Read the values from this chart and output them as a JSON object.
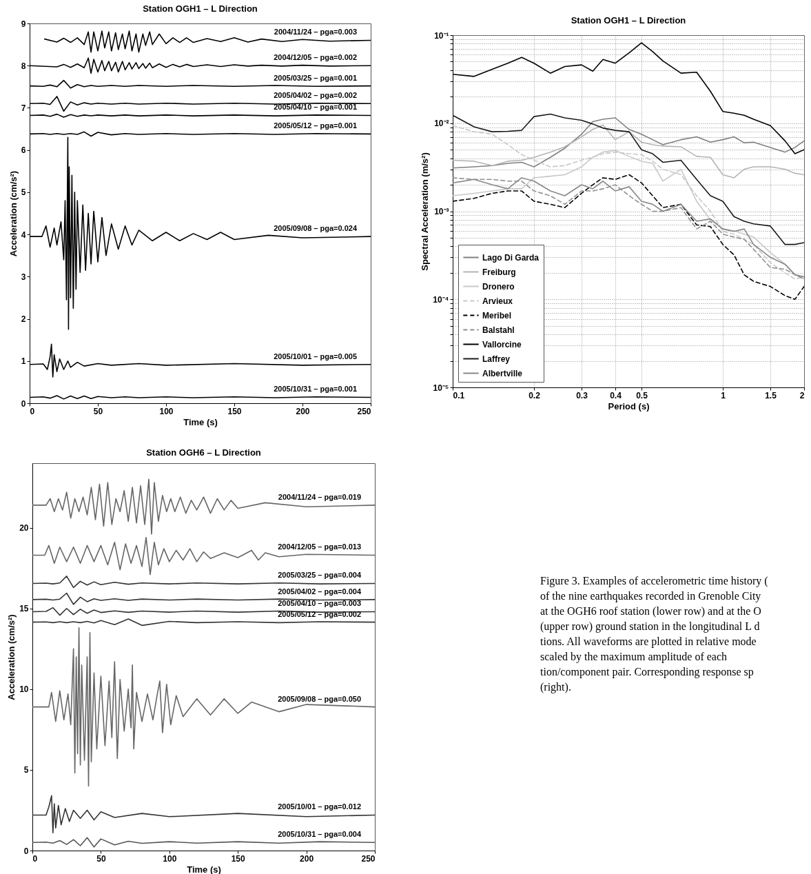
{
  "chart_data": [
    {
      "type": "line",
      "title": "Station OGH1 – L Direction",
      "xlabel": "Time (s)",
      "ylabel": "Acceleration (cm/s²)",
      "xlim": [
        0,
        250
      ],
      "ylim": [
        0,
        9
      ],
      "xticks": [
        0,
        50,
        100,
        150,
        200,
        250
      ],
      "yticks": [
        0,
        1,
        2,
        3,
        4,
        5,
        6,
        7,
        8,
        9
      ],
      "x": [
        0,
        10,
        15,
        20,
        25,
        30,
        35,
        40,
        45,
        50,
        60,
        70,
        80,
        100,
        120,
        150,
        180,
        210,
        250
      ],
      "series": [
        {
          "color": "#000000",
          "x": [
            11,
            20,
            25,
            30,
            35,
            40,
            43,
            45,
            47,
            50,
            53,
            55,
            58,
            60,
            63,
            65,
            68,
            70,
            73,
            75,
            78,
            80,
            83,
            85,
            88,
            90,
            95,
            100,
            105,
            110,
            115,
            120,
            130,
            140,
            150,
            160,
            170,
            185,
            200,
            220,
            250
          ],
          "values": [
            8.63,
            8.56,
            8.65,
            8.55,
            8.66,
            8.5,
            8.8,
            8.32,
            8.8,
            8.35,
            8.82,
            8.42,
            8.8,
            8.35,
            8.78,
            8.38,
            8.75,
            8.4,
            8.82,
            8.35,
            8.75,
            8.32,
            8.75,
            8.48,
            8.8,
            8.5,
            8.75,
            8.52,
            8.66,
            8.55,
            8.66,
            8.55,
            8.64,
            8.57,
            8.66,
            8.56,
            8.63,
            8.57,
            8.62,
            8.58,
            8.6
          ]
        },
        {
          "color": "#000000",
          "x": [
            0,
            20,
            25,
            30,
            35,
            40,
            43,
            45,
            47,
            50,
            53,
            55,
            58,
            60,
            63,
            65,
            68,
            70,
            73,
            75,
            78,
            80,
            83,
            85,
            88,
            90,
            95,
            100,
            105,
            110,
            115,
            120,
            130,
            140,
            150,
            160,
            170,
            185,
            200,
            220,
            250
          ],
          "values": [
            8.0,
            7.97,
            8.03,
            7.96,
            8.04,
            7.95,
            8.18,
            7.82,
            8.15,
            7.85,
            8.12,
            7.88,
            8.1,
            7.88,
            8.08,
            7.85,
            8.1,
            7.9,
            8.07,
            7.92,
            8.07,
            7.93,
            8.05,
            7.94,
            8.06,
            7.95,
            8.04,
            7.96,
            8.03,
            7.97,
            8.03,
            7.98,
            8.02,
            7.98,
            8.02,
            7.99,
            8.01,
            7.99,
            8.01,
            7.99,
            8.0
          ]
        },
        {
          "color": "#000000",
          "values": [
            7.52,
            7.51,
            7.54,
            7.5,
            7.65,
            7.47,
            7.55,
            7.5,
            7.53,
            7.51,
            7.53,
            7.51,
            7.53,
            7.51,
            7.53,
            7.51,
            7.53,
            7.51,
            7.52
          ]
        },
        {
          "color": "#000000",
          "values": [
            7.1,
            7.11,
            7.08,
            7.27,
            6.92,
            7.14,
            7.07,
            7.12,
            7.09,
            7.11,
            7.09,
            7.11,
            7.09,
            7.11,
            7.09,
            7.11,
            7.09,
            7.11,
            7.1
          ]
        },
        {
          "color": "#000000",
          "values": [
            6.82,
            6.83,
            6.8,
            6.85,
            6.78,
            6.84,
            6.8,
            6.83,
            6.81,
            6.83,
            6.81,
            6.83,
            6.81,
            6.83,
            6.81,
            6.83,
            6.81,
            6.83,
            6.82
          ]
        },
        {
          "color": "#000000",
          "values": [
            6.38,
            6.39,
            6.37,
            6.39,
            6.37,
            6.39,
            6.37,
            6.43,
            6.33,
            6.42,
            6.36,
            6.39,
            6.37,
            6.39,
            6.37,
            6.39,
            6.37,
            6.39,
            6.38
          ]
        },
        {
          "color": "#000000",
          "x": [
            0,
            9,
            12,
            15,
            18,
            20,
            23,
            25,
            26,
            27,
            28,
            28.5,
            29,
            30,
            31,
            32,
            33,
            34,
            35,
            37,
            39,
            41,
            43,
            45,
            47,
            50,
            53,
            56,
            60,
            65,
            70,
            75,
            80,
            90,
            100,
            110,
            120,
            130,
            140,
            150,
            175,
            200,
            250
          ],
          "values": [
            3.95,
            3.95,
            4.2,
            3.7,
            4.15,
            3.75,
            4.3,
            3.4,
            4.8,
            2.45,
            6.3,
            1.75,
            5.6,
            2.5,
            5.4,
            2.25,
            5.0,
            2.7,
            4.8,
            3.1,
            4.7,
            3.15,
            4.5,
            3.3,
            4.55,
            3.35,
            4.4,
            3.5,
            4.25,
            3.65,
            4.2,
            3.75,
            4.1,
            3.85,
            4.05,
            3.85,
            4.02,
            3.88,
            4.05,
            3.88,
            3.98,
            3.92,
            3.95
          ]
        },
        {
          "color": "#000000",
          "x": [
            0,
            10,
            13,
            15,
            16,
            17,
            18,
            20,
            22,
            25,
            28,
            30,
            35,
            40,
            50,
            60,
            80,
            100,
            150,
            200,
            250
          ],
          "values": [
            0.92,
            0.93,
            0.8,
            1.1,
            1.4,
            0.62,
            1.15,
            0.75,
            1.05,
            0.8,
            1.0,
            0.85,
            0.97,
            0.88,
            0.94,
            0.9,
            0.94,
            0.9,
            0.94,
            0.9,
            0.92
          ]
        },
        {
          "color": "#000000",
          "values": [
            0.14,
            0.15,
            0.12,
            0.18,
            0.1,
            0.17,
            0.11,
            0.17,
            0.11,
            0.16,
            0.13,
            0.15,
            0.13,
            0.15,
            0.13,
            0.15,
            0.13,
            0.15,
            0.14
          ]
        }
      ],
      "annotations": [
        "2004/11/24 – pga=0.003",
        "2004/12/05 – pga=0.002",
        "2005/03/25 – pga=0.001",
        "2005/04/02 – pga=0.002",
        "2005/04/10 – pga=0.001",
        "2005/05/12 – pga=0.001",
        "2005/09/08 – pga=0.024",
        "2005/10/01 – pga=0.005",
        "2005/10/31 – pga=0.001"
      ]
    },
    {
      "type": "line",
      "title": "Station OGH1 – L Direction",
      "xlabel": "Period (s)",
      "ylabel": "Spectral Acceleration (m/s²)",
      "log": "xy",
      "grid": true,
      "legend": "bottom left",
      "xlim": [
        0.1,
        2
      ],
      "ylim": [
        1e-05,
        0.1
      ],
      "xticks": [
        0.1,
        0.2,
        0.3,
        0.4,
        0.5,
        1,
        1.5,
        2
      ],
      "yticks": [
        {
          "value": 1e-05,
          "label": "10⁻⁵"
        },
        {
          "value": 2e-05,
          "label": null
        },
        {
          "value": 3e-05,
          "label": null
        },
        {
          "value": 4e-05,
          "label": null
        },
        {
          "value": 5e-05,
          "label": null
        },
        {
          "value": 6e-05,
          "label": null
        },
        {
          "value": 7e-05,
          "label": null
        },
        {
          "value": 8e-05,
          "label": null
        },
        {
          "value": 9e-05,
          "label": null
        },
        {
          "value": 0.0001,
          "label": "10⁻⁴"
        },
        {
          "value": 0.0002,
          "label": null
        },
        {
          "value": 0.0003,
          "label": null
        },
        {
          "value": 0.0004,
          "label": null
        },
        {
          "value": 0.0005,
          "label": null
        },
        {
          "value": 0.0006,
          "label": null
        },
        {
          "value": 0.0007,
          "label": null
        },
        {
          "value": 0.0008,
          "label": null
        },
        {
          "value": 0.0009,
          "label": null
        },
        {
          "value": 0.001,
          "label": "10⁻³"
        },
        {
          "value": 0.002,
          "label": null
        },
        {
          "value": 0.003,
          "label": null
        },
        {
          "value": 0.004,
          "label": null
        },
        {
          "value": 0.005,
          "label": null
        },
        {
          "value": 0.006,
          "label": null
        },
        {
          "value": 0.007,
          "label": null
        },
        {
          "value": 0.008,
          "label": null
        },
        {
          "value": 0.009,
          "label": null
        },
        {
          "value": 0.01,
          "label": "10⁻²"
        },
        {
          "value": 0.02,
          "label": null
        },
        {
          "value": 0.03,
          "label": null
        },
        {
          "value": 0.04,
          "label": null
        },
        {
          "value": 0.05,
          "label": null
        },
        {
          "value": 0.06,
          "label": null
        },
        {
          "value": 0.07,
          "label": null
        },
        {
          "value": 0.08,
          "label": null
        },
        {
          "value": 0.09,
          "label": null
        },
        {
          "value": 0.1,
          "label": "10⁻¹"
        }
      ],
      "x": [
        0.1,
        0.12,
        0.14,
        0.16,
        0.18,
        0.2,
        0.23,
        0.26,
        0.3,
        0.33,
        0.36,
        0.4,
        0.45,
        0.5,
        0.55,
        0.6,
        0.7,
        0.8,
        0.9,
        1,
        1.1,
        1.2,
        1.3,
        1.5,
        1.7,
        1.85,
        2
      ],
      "series": [
        {
          "name": "Lago Di Garda",
          "color": "#808080",
          "line_style": "solid",
          "values": [
            0.0031,
            0.0032,
            0.0033,
            0.0035,
            0.0036,
            0.0032,
            0.0041,
            0.0052,
            0.0075,
            0.0104,
            0.0111,
            0.0115,
            0.0085,
            0.0075,
            0.0065,
            0.0057,
            0.0065,
            0.007,
            0.0061,
            0.0065,
            0.007,
            0.006,
            0.0061,
            0.0053,
            0.0047,
            0.0053,
            0.0063
          ]
        },
        {
          "name": "Freiburg",
          "color": "#b4b4b4",
          "line_style": "solid",
          "values": [
            0.0038,
            0.0037,
            0.0033,
            0.0037,
            0.0038,
            0.0041,
            0.0047,
            0.0054,
            0.007,
            0.0085,
            0.0095,
            0.0065,
            0.008,
            0.0061,
            0.0057,
            0.0055,
            0.0054,
            0.0042,
            0.0041,
            0.0026,
            0.0024,
            0.003,
            0.0032,
            0.0032,
            0.003,
            0.0027,
            0.0026
          ]
        },
        {
          "name": "Dronero",
          "color": "#c8c8c8",
          "line_style": "solid",
          "values": [
            0.0015,
            0.0016,
            0.0017,
            0.0018,
            0.0018,
            0.0024,
            0.0025,
            0.0026,
            0.0032,
            0.0041,
            0.0047,
            0.0049,
            0.0042,
            0.0037,
            0.0035,
            0.0022,
            0.003,
            0.0013,
            0.0008,
            0.00063,
            0.0006,
            0.00055,
            0.00051,
            0.00034,
            0.00025,
            0.00019,
            0.00017
          ]
        },
        {
          "name": "Arvieux",
          "color": "#c8c8c8",
          "line_style": "dashed",
          "values": [
            0.0094,
            0.008,
            0.0075,
            0.0057,
            0.0044,
            0.0038,
            0.0032,
            0.0033,
            0.0038,
            0.0041,
            0.0045,
            0.0047,
            0.0045,
            0.0044,
            0.0037,
            0.003,
            0.0026,
            0.0015,
            0.001,
            0.00059,
            0.00055,
            0.00048,
            0.00042,
            0.00026,
            0.0002,
            0.00017,
            0.00018
          ]
        },
        {
          "name": "Meribel",
          "color": "#000000",
          "line_style": "dashed",
          "values": [
            0.0013,
            0.0014,
            0.0016,
            0.0017,
            0.0017,
            0.0013,
            0.0012,
            0.0011,
            0.0016,
            0.002,
            0.0024,
            0.0023,
            0.0026,
            0.0021,
            0.0015,
            0.0011,
            0.0012,
            0.0007,
            0.00067,
            0.00042,
            0.00032,
            0.00019,
            0.00016,
            0.00014,
            0.00011,
            0.0001,
            0.00014
          ]
        },
        {
          "name": "Balstahl",
          "color": "#909090",
          "line_style": "dashed",
          "values": [
            0.0024,
            0.0023,
            0.0023,
            0.0022,
            0.0022,
            0.0017,
            0.0015,
            0.0012,
            0.0017,
            0.0017,
            0.0018,
            0.002,
            0.0015,
            0.0012,
            0.001,
            0.001,
            0.0011,
            0.00063,
            0.00077,
            0.00055,
            0.00051,
            0.00048,
            0.00037,
            0.00023,
            0.00022,
            0.00019,
            0.00017
          ]
        },
        {
          "name": "Vallorcine",
          "color": "#000000",
          "line_style": "solid",
          "values": [
            0.036,
            0.034,
            0.041,
            0.048,
            0.056,
            0.048,
            0.037,
            0.044,
            0.046,
            0.039,
            0.053,
            0.048,
            0.063,
            0.082,
            0.065,
            0.051,
            0.037,
            0.038,
            0.023,
            0.0136,
            0.013,
            0.0123,
            0.0111,
            0.0094,
            0.0063,
            0.0045,
            0.005
          ]
        },
        {
          "name": "Laffrey",
          "color": "#1a1a1a",
          "line_style": "solid",
          "values": [
            0.0123,
            0.0091,
            0.008,
            0.0081,
            0.0083,
            0.0119,
            0.0127,
            0.0115,
            0.0108,
            0.0098,
            0.0088,
            0.0083,
            0.008,
            0.005,
            0.0045,
            0.0036,
            0.0038,
            0.0023,
            0.0015,
            0.0013,
            0.00087,
            0.00077,
            0.00072,
            0.00068,
            0.00042,
            0.00042,
            0.00044
          ]
        },
        {
          "name": "Albertville",
          "color": "#888888",
          "line_style": "solid",
          "values": [
            0.0021,
            0.0023,
            0.002,
            0.0018,
            0.0024,
            0.0022,
            0.0017,
            0.0015,
            0.002,
            0.0018,
            0.0022,
            0.0017,
            0.0019,
            0.0013,
            0.0012,
            0.001,
            0.0012,
            0.00077,
            0.00082,
            0.00063,
            0.00059,
            0.00063,
            0.00042,
            0.0003,
            0.00025,
            0.00019,
            0.00018
          ]
        }
      ]
    },
    {
      "type": "line",
      "title": "Station OGH6 – L Direction",
      "xlabel": "Time (s)",
      "ylabel": "Acceleration (cm/s²)",
      "xlim": [
        0,
        250
      ],
      "ylim": [
        0,
        24
      ],
      "xticks": [
        0,
        50,
        100,
        150,
        200,
        250
      ],
      "yticks": [
        0,
        5,
        10,
        15,
        20
      ],
      "x": [
        0,
        10,
        15,
        20,
        25,
        30,
        35,
        40,
        45,
        50,
        60,
        70,
        80,
        100,
        120,
        150,
        180,
        210,
        250
      ],
      "series": [
        {
          "color": "#666666",
          "x": [
            0,
            10,
            13,
            16,
            19,
            22,
            25,
            28,
            31,
            34,
            37,
            40,
            43,
            46,
            49,
            52,
            55,
            58,
            61,
            64,
            67,
            70,
            73,
            76,
            79,
            82,
            85,
            87,
            89,
            92,
            95,
            98,
            101,
            104,
            108,
            112,
            116,
            120,
            125,
            130,
            135,
            140,
            145,
            150,
            170,
            200,
            250
          ],
          "values": [
            21.4,
            21.4,
            21.8,
            21.0,
            21.8,
            21.1,
            22.2,
            20.6,
            21.8,
            21.0,
            21.9,
            20.8,
            22.5,
            20.5,
            22.7,
            20.1,
            22.8,
            20.2,
            21.8,
            21.0,
            22.3,
            20.4,
            22.5,
            20.3,
            22.6,
            20.2,
            23.0,
            19.6,
            22.8,
            20.4,
            22.0,
            21.0,
            21.8,
            21.0,
            21.9,
            20.9,
            21.7,
            21.1,
            21.9,
            20.9,
            21.8,
            21.1,
            21.7,
            21.2,
            21.55,
            21.3,
            21.4
          ]
        },
        {
          "color": "#666666",
          "x": [
            0,
            9,
            12,
            16,
            20,
            25,
            30,
            35,
            40,
            45,
            50,
            55,
            60,
            64,
            68,
            72,
            76,
            80,
            83,
            86,
            89,
            92,
            96,
            100,
            105,
            110,
            115,
            120,
            125,
            130,
            140,
            150,
            160,
            165,
            170,
            180,
            200,
            250
          ],
          "values": [
            18.3,
            18.3,
            18.9,
            17.8,
            18.8,
            17.9,
            18.8,
            17.8,
            18.9,
            17.9,
            18.9,
            17.7,
            19.1,
            17.4,
            19.0,
            17.8,
            18.9,
            17.6,
            19.4,
            17.1,
            19.1,
            17.7,
            18.7,
            17.9,
            18.6,
            18.0,
            18.7,
            17.9,
            18.5,
            18.1,
            18.45,
            18.15,
            18.6,
            18.0,
            18.45,
            18.2,
            18.35,
            18.3
          ]
        },
        {
          "color": "#333333",
          "values": [
            16.55,
            16.57,
            16.52,
            16.58,
            17.0,
            16.3,
            16.68,
            16.45,
            16.65,
            16.47,
            16.62,
            16.5,
            16.58,
            16.52,
            16.58,
            16.52,
            16.58,
            16.52,
            16.55
          ]
        },
        {
          "color": "#333333",
          "values": [
            15.55,
            15.57,
            15.52,
            15.58,
            15.95,
            15.25,
            15.7,
            15.42,
            15.6,
            15.5,
            15.6,
            15.5,
            15.58,
            15.52,
            15.58,
            15.52,
            15.58,
            15.52,
            15.55
          ]
        },
        {
          "color": "#333333",
          "values": [
            14.8,
            14.82,
            15.05,
            14.58,
            15.0,
            14.62,
            14.95,
            14.7,
            14.9,
            14.75,
            14.85,
            14.76,
            14.84,
            14.77,
            14.84,
            14.77,
            14.84,
            14.77,
            14.8
          ]
        },
        {
          "color": "#333333",
          "values": [
            14.15,
            14.17,
            14.12,
            14.18,
            14.12,
            14.18,
            14.12,
            14.2,
            14.1,
            14.25,
            14.0,
            14.35,
            13.95,
            14.2,
            14.12,
            14.18,
            14.12,
            14.18,
            14.15
          ]
        },
        {
          "color": "#666666",
          "x": [
            0,
            12,
            14,
            17,
            20,
            23,
            26,
            28,
            30,
            31,
            32,
            33,
            34,
            35,
            36,
            38,
            40,
            41,
            42,
            43,
            45,
            47,
            50,
            53,
            56,
            58,
            60,
            62,
            64,
            67,
            70,
            72,
            73,
            74,
            76,
            80,
            84,
            88,
            91,
            93,
            95,
            98,
            101,
            105,
            110,
            120,
            130,
            140,
            150,
            160,
            180,
            200,
            250
          ],
          "values": [
            8.9,
            8.9,
            9.8,
            8.0,
            9.9,
            8.1,
            9.7,
            7.8,
            12.5,
            4.8,
            12.0,
            6.0,
            13.8,
            5.3,
            11.5,
            5.6,
            12.0,
            4.0,
            13.5,
            5.5,
            11.0,
            6.3,
            10.8,
            6.5,
            10.5,
            7.0,
            11.7,
            5.7,
            10.6,
            7.4,
            10.0,
            7.6,
            11.5,
            6.3,
            9.8,
            8.0,
            9.7,
            8.1,
            9.6,
            10.5,
            7.3,
            10.3,
            7.8,
            9.6,
            8.3,
            9.4,
            8.4,
            9.4,
            8.5,
            9.2,
            8.6,
            9.05,
            8.9
          ]
        },
        {
          "color": "#333333",
          "x": [
            0,
            10,
            12,
            14,
            15,
            16,
            17,
            19,
            21,
            24,
            27,
            30,
            35,
            40,
            45,
            50,
            60,
            80,
            100,
            150,
            200,
            250
          ],
          "values": [
            2.2,
            2.2,
            2.7,
            3.4,
            1.1,
            2.9,
            1.4,
            2.8,
            1.6,
            2.6,
            1.8,
            2.5,
            2.0,
            2.5,
            1.9,
            2.4,
            2.05,
            2.3,
            2.1,
            2.3,
            2.1,
            2.2
          ]
        },
        {
          "color": "#555555",
          "values": [
            0.5,
            0.52,
            0.46,
            0.62,
            0.38,
            0.68,
            0.3,
            0.8,
            0.22,
            0.72,
            0.35,
            0.58,
            0.45,
            0.55,
            0.46,
            0.55,
            0.46,
            0.55,
            0.5
          ]
        }
      ],
      "annotations": [
        "2004/11/24 – pga=0.019",
        "2004/12/05 – pga=0.013",
        "2005/03/25 – pga=0.004",
        "2005/04/02 – pga=0.004",
        "2005/04/10 – pga=0.003",
        "2005/05/12 – pga=0.002",
        "2005/09/08 – pga=0.050",
        "2005/10/01 – pga=0.012",
        "2005/10/31 – pga=0.004"
      ]
    },
    {
      "type": "other",
      "annotations": [
        "Figure 3. Examples of accelerometric time history (",
        "of the nine earthquakes recorded in Grenoble City",
        "at the OGH6 roof station (lower row) and at the O",
        "(upper row) ground station in the longitudinal L d",
        "tions. All waveforms are plotted in relative mode",
        "scaled by the maximum amplitude of each",
        "tion/component pair. Corresponding response sp",
        "(right)."
      ]
    }
  ]
}
